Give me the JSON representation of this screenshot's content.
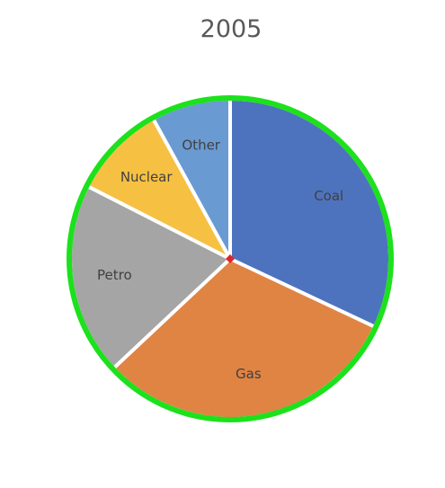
{
  "chart_data": {
    "type": "pie",
    "title": "2005",
    "slices": [
      {
        "label": "Coal",
        "value": 32.0,
        "color": "#4E73BE"
      },
      {
        "label": "Gas",
        "value": 31.0,
        "color": "#E08443"
      },
      {
        "label": "Petro",
        "value": 19.5,
        "color": "#A5A5A5"
      },
      {
        "label": "Nuclear",
        "value": 9.5,
        "color": "#F6C043"
      },
      {
        "label": "Other",
        "value": 8.0,
        "color": "#6A9AD2"
      }
    ],
    "start_angle_deg": 0,
    "direction": "clockwise",
    "legend": "none",
    "outline_color": "#1CE11C",
    "separator_color": "#ffffff",
    "center_marker_color": "#E0262B"
  }
}
